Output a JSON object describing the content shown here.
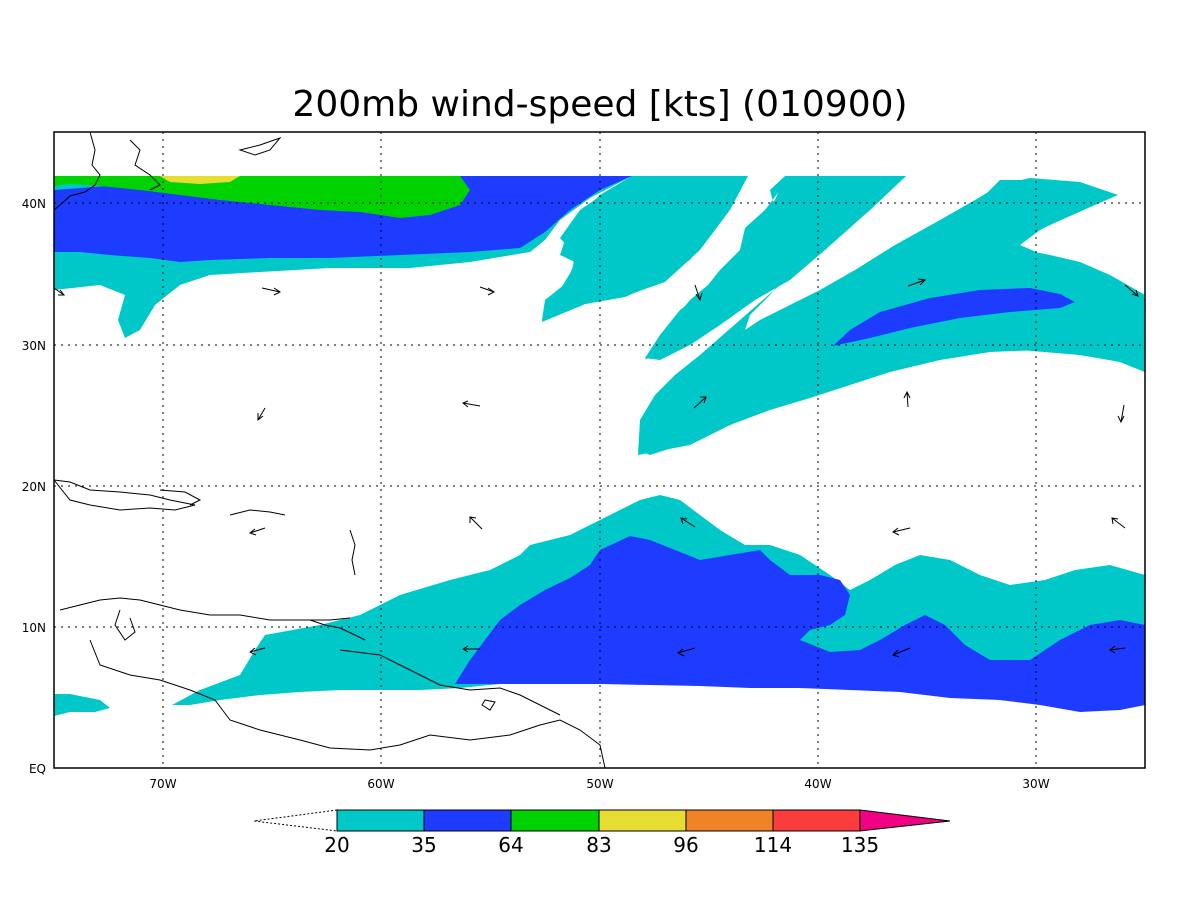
{
  "title": "200mb wind-speed [kts] (010900)",
  "colors": {
    "band_20_35": "#00c8c8",
    "band_35_64": "#1e3cff",
    "band_64_83": "#00d200",
    "band_83_96": "#e6dc32",
    "band_96_114": "#f08228",
    "band_114_135": "#fa3c3c",
    "band_135_plus": "#f00082"
  },
  "axes": {
    "x_ticks": [
      "70W",
      "60W",
      "50W",
      "40W",
      "30W"
    ],
    "y_ticks": [
      "40N",
      "30N",
      "20N",
      "10N",
      "EQ"
    ],
    "lon_range": [
      "75W",
      "25W"
    ],
    "lat_range": [
      "EQ",
      "45N"
    ],
    "grid": true
  },
  "colorbar": {
    "labels": [
      "20",
      "35",
      "64",
      "83",
      "96",
      "114",
      "135"
    ],
    "colors": [
      "#00c8c8",
      "#1e3cff",
      "#00d200",
      "#e6dc32",
      "#f08228",
      "#fa3c3c",
      "#f00082"
    ]
  }
}
